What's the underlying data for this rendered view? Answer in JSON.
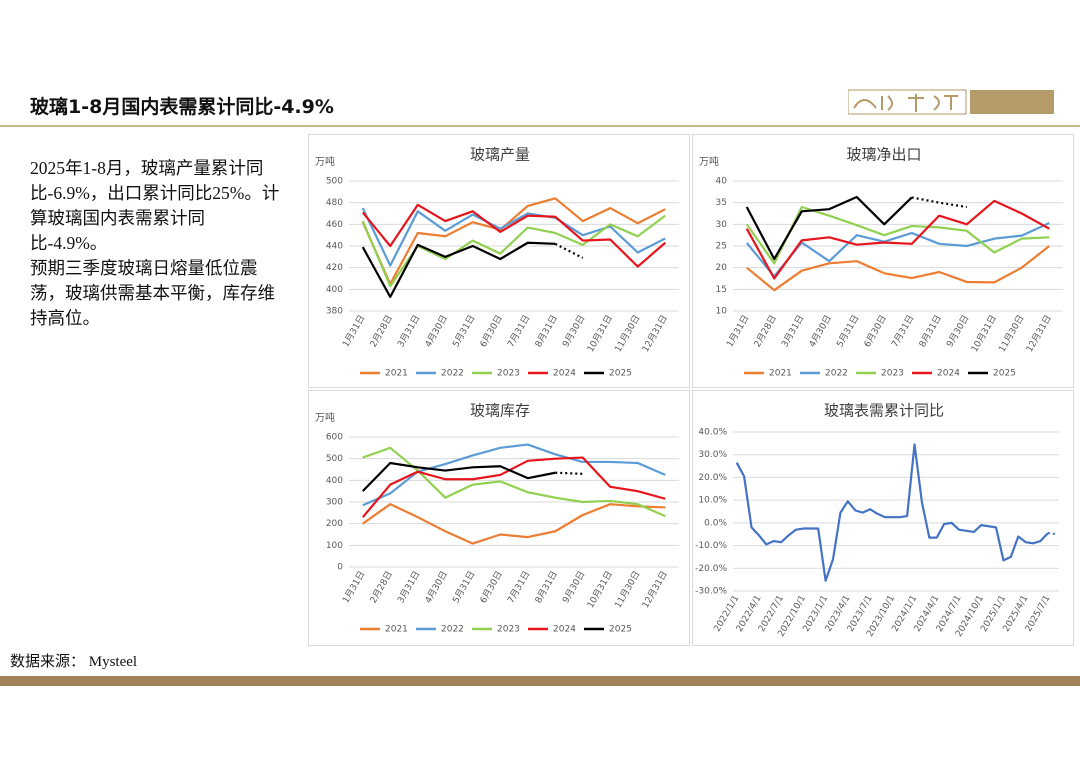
{
  "header": {
    "title": "玻璃1-8月国内表需累计同比-4.9%"
  },
  "text": {
    "paragraphs": [
      "2025年1-8月，玻璃产量累计同比-6.9%，出口累计同比25%。计算玻璃国内表需累计同比-4.9%。",
      "预期三季度玻璃日熔量低位震荡，玻璃供需基本平衡，库存维持高位。"
    ]
  },
  "source": "数据来源： Mysteel",
  "chart_data": [
    {
      "type": "line",
      "title": "玻璃产量",
      "ylabel": "万吨",
      "categories": [
        "1月31日",
        "2月28日",
        "3月31日",
        "4月30日",
        "5月31日",
        "6月30日",
        "7月31日",
        "8月31日",
        "9月30日",
        "10月31日",
        "11月30日",
        "12月31日"
      ],
      "ylim": [
        380,
        500
      ],
      "yticks": [
        380,
        400,
        420,
        440,
        460,
        480,
        500
      ],
      "grid": true,
      "legend": "bottom",
      "series": [
        {
          "name": "2021",
          "color": "#ed7d31",
          "values": [
            462,
            405,
            452,
            449,
            462,
            455,
            477,
            484,
            463,
            475,
            461,
            474
          ]
        },
        {
          "name": "2022",
          "color": "#5b9bd5",
          "values": [
            475,
            422,
            472,
            454,
            469,
            456,
            470,
            466,
            450,
            458,
            434,
            447
          ]
        },
        {
          "name": "2023",
          "color": "#92d050",
          "values": [
            463,
            403,
            440,
            428,
            445,
            433,
            457,
            452,
            441,
            460,
            449,
            468
          ]
        },
        {
          "name": "2024",
          "color": "#e8141b",
          "values": [
            471,
            440,
            478,
            463,
            472,
            453,
            468,
            467,
            445,
            446,
            421,
            443
          ]
        },
        {
          "name": "2025",
          "color": "#000000",
          "forecast_start": 7,
          "values": [
            439,
            393,
            441,
            430,
            440,
            428,
            443,
            442,
            429,
            null,
            null,
            null
          ]
        }
      ]
    },
    {
      "type": "line",
      "title": "玻璃净出口",
      "ylabel": "万吨",
      "categories": [
        "1月31日",
        "2月28日",
        "3月31日",
        "4月30日",
        "5月31日",
        "6月30日",
        "7月31日",
        "8月31日",
        "9月30日",
        "10月31日",
        "11月30日",
        "12月31日"
      ],
      "ylim": [
        10,
        40
      ],
      "yticks": [
        10,
        15,
        20,
        25,
        30,
        35,
        40
      ],
      "grid": true,
      "legend": "bottom",
      "series": [
        {
          "name": "2021",
          "color": "#ed7d31",
          "values": [
            20,
            14.8,
            19.3,
            21,
            21.5,
            18.7,
            17.6,
            19,
            16.7,
            16.6,
            20,
            25
          ]
        },
        {
          "name": "2022",
          "color": "#5b9bd5",
          "values": [
            25.7,
            18,
            25.8,
            21.5,
            27.5,
            26,
            28,
            25.5,
            25,
            26.7,
            27.4,
            30.3
          ]
        },
        {
          "name": "2023",
          "color": "#92d050",
          "values": [
            30,
            21,
            34,
            32,
            29.8,
            27.5,
            29.6,
            29.3,
            28.5,
            23.5,
            26.7,
            27
          ]
        },
        {
          "name": "2024",
          "color": "#e8141b",
          "values": [
            29,
            17.5,
            26.3,
            27,
            25.3,
            25.8,
            25.5,
            32,
            30,
            35.4,
            32.5,
            29
          ]
        },
        {
          "name": "2025",
          "color": "#000000",
          "forecast_start": 6,
          "values": [
            34,
            22,
            33,
            33.5,
            36.3,
            30,
            36.2,
            35,
            34,
            null,
            null,
            null
          ]
        }
      ]
    },
    {
      "type": "line",
      "title": "玻璃库存",
      "ylabel": "万吨",
      "categories": [
        "1月31日",
        "2月28日",
        "3月31日",
        "4月30日",
        "5月31日",
        "6月30日",
        "7月31日",
        "8月31日",
        "9月30日",
        "10月31日",
        "11月30日",
        "12月31日"
      ],
      "ylim": [
        0,
        600
      ],
      "yticks": [
        0,
        100,
        200,
        300,
        400,
        500,
        600
      ],
      "grid": true,
      "legend": "bottom",
      "series": [
        {
          "name": "2021",
          "color": "#ed7d31",
          "values": [
            200,
            290,
            230,
            165,
            108,
            150,
            138,
            165,
            240,
            290,
            280,
            275
          ]
        },
        {
          "name": "2022",
          "color": "#5b9bd5",
          "values": [
            285,
            340,
            440,
            475,
            515,
            550,
            565,
            520,
            485,
            485,
            480,
            425
          ]
        },
        {
          "name": "2023",
          "color": "#92d050",
          "values": [
            505,
            550,
            445,
            320,
            380,
            395,
            345,
            320,
            300,
            305,
            290,
            235
          ]
        },
        {
          "name": "2024",
          "color": "#e8141b",
          "values": [
            230,
            380,
            440,
            405,
            405,
            425,
            490,
            500,
            505,
            370,
            350,
            315
          ]
        },
        {
          "name": "2025",
          "color": "#000000",
          "forecast_start": 7,
          "values": [
            350,
            480,
            460,
            445,
            460,
            465,
            410,
            435,
            430,
            null,
            null,
            null
          ]
        }
      ]
    },
    {
      "type": "line",
      "title": "玻璃表需累计同比",
      "categories": [
        "2022/1/1",
        null,
        null,
        "2022/4/1",
        null,
        null,
        "2022/7/1",
        null,
        null,
        "2022/10/1",
        null,
        null,
        "2023/1/1",
        null,
        null,
        "2023/4/1",
        null,
        null,
        "2023/7/1",
        null,
        null,
        "2023/10/1",
        null,
        null,
        "2024/1/1",
        null,
        null,
        "2024/4/1",
        null,
        null,
        "2024/7/1",
        null,
        null,
        "2024/10/1",
        null,
        null,
        "2025/1/1",
        null,
        null,
        "2025/4/1",
        null,
        null,
        "2025/7/1",
        null
      ],
      "ylim": [
        -30,
        40
      ],
      "yticks": [
        {
          "value": -30,
          "label": "-30.0%"
        },
        {
          "value": -20,
          "label": "-20.0%"
        },
        {
          "value": -10,
          "label": "-10.0%"
        },
        {
          "value": 0,
          "label": "0.0%"
        },
        {
          "value": 10,
          "label": "10.0%"
        },
        {
          "value": 20,
          "label": "20.0%"
        },
        {
          "value": 30,
          "label": "30.0%"
        },
        {
          "value": 40,
          "label": "40.0%"
        }
      ],
      "grid": true,
      "series": [
        {
          "color": "#4472c4",
          "forecast_start": 42,
          "values": [
            26.5,
            20.5,
            -2,
            -5.5,
            -9.5,
            -8,
            -8.5,
            -5.5,
            -3,
            -2.5,
            -2.5,
            -2.5,
            -25.5,
            -16,
            4.5,
            9.5,
            5.5,
            4.5,
            6,
            4,
            2.5,
            2.5,
            2.5,
            3,
            34.5,
            9,
            -6.5,
            -6.5,
            -0.5,
            0,
            -3,
            -3.5,
            -4,
            -1,
            -1.5,
            -2,
            -16.5,
            -15,
            -6,
            -8.5,
            -9,
            -8,
            -4.5,
            -4.9
          ]
        }
      ]
    }
  ]
}
